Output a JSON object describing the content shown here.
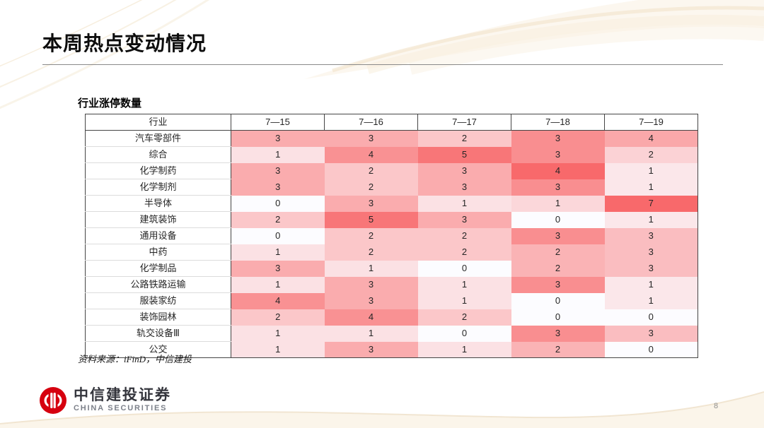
{
  "page": {
    "title": "本周热点变动情况",
    "page_number": "8"
  },
  "table_section": {
    "subtitle": "行业涨停数量",
    "source": "资料来源：iFinD，中信建投"
  },
  "footer": {
    "logo_cn": "中信建投证券",
    "logo_en": "CHINA SECURITIES",
    "brand_red": "#d6000f"
  },
  "chart_data": {
    "type": "heatmap",
    "title": "行业涨停数量",
    "row_header_label": "行业",
    "columns": [
      "7—15",
      "7—16",
      "7—17",
      "7—18",
      "7—19"
    ],
    "rows": [
      {
        "industry": "汽车零部件",
        "values": [
          3,
          3,
          2,
          3,
          4
        ]
      },
      {
        "industry": "综合",
        "values": [
          1,
          4,
          5,
          3,
          2
        ]
      },
      {
        "industry": "化学制药",
        "values": [
          3,
          2,
          3,
          4,
          1
        ]
      },
      {
        "industry": "化学制剂",
        "values": [
          3,
          2,
          3,
          3,
          1
        ]
      },
      {
        "industry": "半导体",
        "values": [
          0,
          3,
          1,
          1,
          7
        ]
      },
      {
        "industry": "建筑装饰",
        "values": [
          2,
          5,
          3,
          0,
          1
        ]
      },
      {
        "industry": "通用设备",
        "values": [
          0,
          2,
          2,
          3,
          3
        ]
      },
      {
        "industry": "中药",
        "values": [
          1,
          2,
          2,
          2,
          3
        ]
      },
      {
        "industry": "化学制品",
        "values": [
          3,
          1,
          0,
          2,
          3
        ]
      },
      {
        "industry": "公路铁路运输",
        "values": [
          1,
          3,
          1,
          3,
          1
        ]
      },
      {
        "industry": "服装家纺",
        "values": [
          4,
          3,
          1,
          0,
          1
        ]
      },
      {
        "industry": "装饰园林",
        "values": [
          2,
          4,
          2,
          0,
          0
        ]
      },
      {
        "industry": "轨交设备Ⅲ",
        "values": [
          1,
          1,
          0,
          3,
          3
        ]
      },
      {
        "industry": "公交",
        "values": [
          1,
          3,
          1,
          2,
          0
        ]
      }
    ],
    "heatmap": {
      "min_color": "#FCFCFF",
      "max_color": "#F8696B",
      "column_scale_max": [
        5.5,
        5.5,
        5.5,
        4,
        7
      ]
    },
    "legend": "none",
    "grid": "header-and-row-labels-only"
  }
}
